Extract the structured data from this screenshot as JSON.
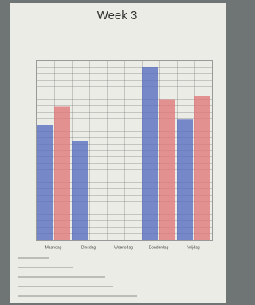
{
  "chart_data": {
    "type": "bar",
    "title": "Week 3",
    "categories": [
      "Maandag",
      "Dinsdag",
      "Woensdag",
      "Donderdag",
      "Vrijdag"
    ],
    "series": [
      {
        "color": "#5a6fc0",
        "values": [
          64,
          55,
          null,
          96,
          67
        ]
      },
      {
        "color": "#e07a7a",
        "values": [
          74,
          null,
          null,
          78,
          80
        ]
      }
    ],
    "ylim": [
      0,
      100
    ]
  }
}
